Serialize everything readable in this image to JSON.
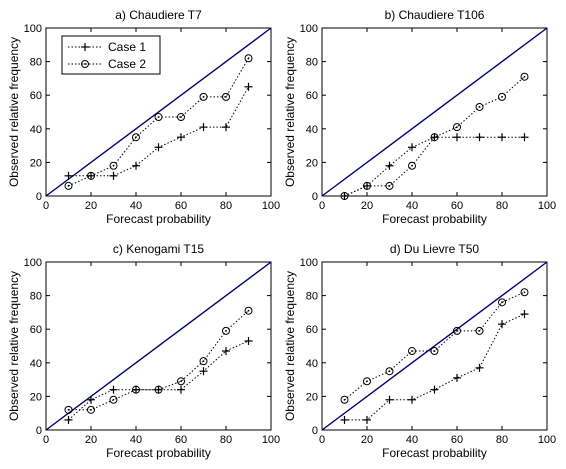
{
  "legend": {
    "case1_label": "Case 1",
    "case2_label": "Case 2"
  },
  "colors": {
    "diagonal": "#00006e",
    "series": "#000000",
    "frame": "#000000"
  },
  "chart_data": [
    {
      "type": "line",
      "title": "a) Chaudiere T7",
      "xlabel": "Forecast probability",
      "ylabel": "Observed relative frequency",
      "xlim": [
        0,
        100
      ],
      "ylim": [
        0,
        100
      ],
      "xticks": [
        0,
        20,
        40,
        60,
        80,
        100
      ],
      "yticks": [
        0,
        20,
        40,
        60,
        80,
        100
      ],
      "grid": false,
      "legend_position": "top-left",
      "perfect_reliability_line": [
        [
          0,
          0
        ],
        [
          100,
          100
        ]
      ],
      "x": [
        10,
        20,
        30,
        40,
        50,
        60,
        70,
        80,
        90
      ],
      "series": [
        {
          "name": "Case 1",
          "marker": "+",
          "values": [
            12,
            12,
            12,
            18,
            29,
            35,
            41,
            41,
            65
          ]
        },
        {
          "name": "Case 2",
          "marker": "o",
          "values": [
            6,
            12,
            18,
            35,
            47,
            47,
            59,
            59,
            82
          ]
        }
      ]
    },
    {
      "type": "line",
      "title": "b) Chaudiere T106",
      "xlabel": "Forecast probability",
      "ylabel": "Observed relative frequency",
      "xlim": [
        0,
        100
      ],
      "ylim": [
        0,
        100
      ],
      "xticks": [
        0,
        20,
        40,
        60,
        80,
        100
      ],
      "yticks": [
        0,
        20,
        40,
        60,
        80,
        100
      ],
      "grid": false,
      "perfect_reliability_line": [
        [
          0,
          0
        ],
        [
          100,
          100
        ]
      ],
      "x": [
        10,
        20,
        30,
        40,
        50,
        60,
        70,
        80,
        90
      ],
      "series": [
        {
          "name": "Case 1",
          "marker": "+",
          "values": [
            0,
            6,
            18,
            29,
            35,
            35,
            35,
            35,
            35
          ]
        },
        {
          "name": "Case 2",
          "marker": "o",
          "values": [
            0,
            6,
            6,
            18,
            35,
            41,
            53,
            59,
            71
          ]
        }
      ]
    },
    {
      "type": "line",
      "title": "c) Kenogami T15",
      "xlabel": "Forecast probability",
      "ylabel": "Observed relative frequency",
      "xlim": [
        0,
        100
      ],
      "ylim": [
        0,
        100
      ],
      "xticks": [
        0,
        20,
        40,
        60,
        80,
        100
      ],
      "yticks": [
        0,
        20,
        40,
        60,
        80,
        100
      ],
      "grid": false,
      "perfect_reliability_line": [
        [
          0,
          0
        ],
        [
          100,
          100
        ]
      ],
      "x": [
        10,
        20,
        30,
        40,
        50,
        60,
        70,
        80,
        90
      ],
      "series": [
        {
          "name": "Case 1",
          "marker": "+",
          "values": [
            6,
            18,
            24,
            24,
            24,
            24,
            35,
            47,
            53
          ]
        },
        {
          "name": "Case 2",
          "marker": "o",
          "values": [
            12,
            12,
            18,
            24,
            24,
            29,
            41,
            59,
            71
          ]
        }
      ]
    },
    {
      "type": "line",
      "title": "d) Du Lievre T50",
      "xlabel": "Forecast probability",
      "ylabel": "Observed relative frequency",
      "xlim": [
        0,
        100
      ],
      "ylim": [
        0,
        100
      ],
      "xticks": [
        0,
        20,
        40,
        60,
        80,
        100
      ],
      "yticks": [
        0,
        20,
        40,
        60,
        80,
        100
      ],
      "grid": false,
      "perfect_reliability_line": [
        [
          0,
          0
        ],
        [
          100,
          100
        ]
      ],
      "x": [
        10,
        20,
        30,
        40,
        50,
        60,
        70,
        80,
        90
      ],
      "series": [
        {
          "name": "Case 1",
          "marker": "+",
          "values": [
            6,
            6,
            18,
            18,
            24,
            31,
            37,
            63,
            69
          ]
        },
        {
          "name": "Case 2",
          "marker": "o",
          "values": [
            18,
            29,
            35,
            47,
            47,
            59,
            59,
            76,
            82
          ]
        }
      ]
    }
  ]
}
